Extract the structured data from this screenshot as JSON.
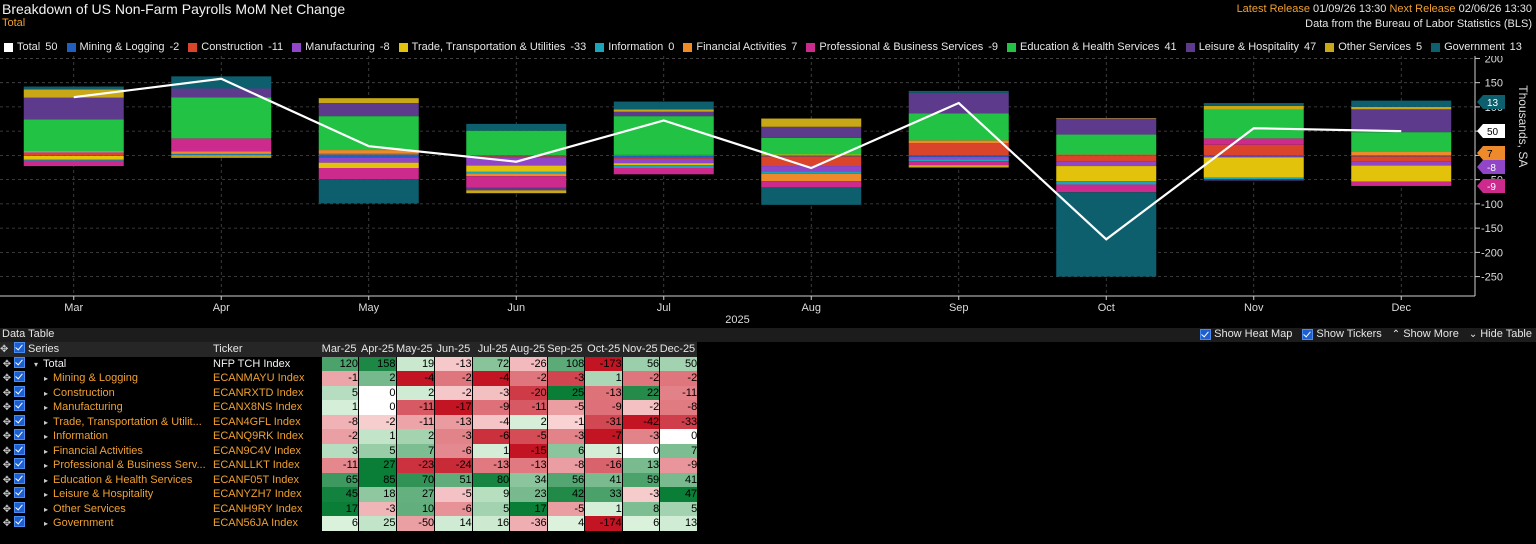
{
  "header": {
    "title": "Breakdown of US Non-Farm Payrolls MoM Net Change",
    "subtitle": "Total",
    "latest_release_label": "Latest Release",
    "latest_release_value": "01/09/26 13:30",
    "next_release_label": "Next Release",
    "next_release_value": "02/06/26 13:30",
    "source": "Data from the Bureau of Labor Statistics (BLS)"
  },
  "colors": {
    "Total": "#ffffff",
    "Mining & Logging": "#1f5fbf",
    "Construction": "#d9442a",
    "Manufacturing": "#9146c8",
    "Trade, Transportation & Utilities": "#e3c20c",
    "Information": "#1aa5b8",
    "Financial Activities": "#ec8a2c",
    "Professional & Business Services": "#cc2a8c",
    "Education & Health Services": "#22c244",
    "Leisure & Hospitality": "#5e3a8c",
    "Other Services": "#c8a816",
    "Government": "#0d5f6e"
  },
  "legend": [
    {
      "name": "Total",
      "value": "50"
    },
    {
      "name": "Mining & Logging",
      "value": "-2"
    },
    {
      "name": "Construction",
      "value": "-11"
    },
    {
      "name": "Manufacturing",
      "value": "-8"
    },
    {
      "name": "Trade, Transportation & Utilities",
      "value": "-33"
    },
    {
      "name": "Information",
      "value": "0"
    },
    {
      "name": "Financial Activities",
      "value": "7"
    },
    {
      "name": "Professional & Business Services",
      "value": "-9"
    },
    {
      "name": "Education & Health Services",
      "value": "41"
    },
    {
      "name": "Leisure & Hospitality",
      "value": "47"
    },
    {
      "name": "Other Services",
      "value": "5"
    },
    {
      "name": "Government",
      "value": "13"
    }
  ],
  "chart_data": {
    "type": "bar",
    "stacked": true,
    "categories": [
      "Mar",
      "Apr",
      "May",
      "Jun",
      "Jul",
      "Aug",
      "Sep",
      "Oct",
      "Nov",
      "Dec"
    ],
    "xlabel": "2025",
    "ylabel": "Thousands, SA",
    "ylim": [
      -290,
      205
    ],
    "yticks": [
      200,
      150,
      100,
      50,
      0,
      -50,
      -100,
      -150,
      -200,
      -250
    ],
    "y_axis_position": "right",
    "line_series": {
      "name": "Total",
      "values": [
        120,
        158,
        19,
        -13,
        72,
        -26,
        108,
        -173,
        56,
        50
      ]
    },
    "series": [
      {
        "name": "Mining & Logging",
        "values": [
          -1,
          2,
          -4,
          -2,
          -4,
          -2,
          -3,
          1,
          -2,
          -2
        ]
      },
      {
        "name": "Construction",
        "values": [
          5,
          0,
          2,
          -2,
          -3,
          -20,
          25,
          -13,
          22,
          -11
        ]
      },
      {
        "name": "Manufacturing",
        "values": [
          1,
          0,
          -11,
          -17,
          -9,
          -11,
          -5,
          -9,
          -2,
          -8
        ]
      },
      {
        "name": "Trade, Transportation & Utilities",
        "values": [
          -8,
          -2,
          -11,
          -13,
          -4,
          2,
          -1,
          -31,
          -42,
          -33
        ]
      },
      {
        "name": "Information",
        "values": [
          -2,
          1,
          2,
          -3,
          -6,
          -5,
          -3,
          -7,
          -3,
          0
        ]
      },
      {
        "name": "Financial Activities",
        "values": [
          3,
          5,
          7,
          -6,
          1,
          -15,
          6,
          1,
          0,
          7
        ]
      },
      {
        "name": "Professional & Business Services",
        "values": [
          -11,
          27,
          -23,
          -24,
          -13,
          -13,
          -8,
          -16,
          13,
          -9
        ]
      },
      {
        "name": "Education & Health Services",
        "values": [
          65,
          85,
          70,
          51,
          80,
          34,
          56,
          41,
          59,
          41
        ]
      },
      {
        "name": "Leisure & Hospitality",
        "values": [
          45,
          18,
          27,
          -5,
          9,
          23,
          42,
          33,
          -3,
          47
        ]
      },
      {
        "name": "Other Services",
        "values": [
          17,
          -3,
          10,
          -6,
          5,
          17,
          -5,
          1,
          8,
          5
        ]
      },
      {
        "name": "Government",
        "values": [
          6,
          25,
          -50,
          14,
          16,
          -36,
          4,
          -174,
          6,
          13
        ]
      }
    ],
    "end_labels": [
      {
        "text": "13",
        "value": 13,
        "color": "#0d5f6e",
        "row": 0
      },
      {
        "text": "50",
        "value": 50,
        "color": "#ffffff",
        "row": 1
      },
      {
        "text": "7",
        "value": 7,
        "color": "#ec8a2c",
        "row": 2
      },
      {
        "text": "-8",
        "value": -8,
        "color": "#9146c8",
        "row": 3
      },
      {
        "text": "-9",
        "value": -9,
        "color": "#cc2a8c",
        "row": 4
      }
    ]
  },
  "data_table": {
    "title": "Data Table",
    "controls": [
      {
        "label": "Show Heat Map",
        "kind": "checkbox"
      },
      {
        "label": "Show Tickers",
        "kind": "checkbox"
      },
      {
        "label": "Show More",
        "kind": "chevron-up"
      },
      {
        "label": "Hide Table",
        "kind": "chevron-down"
      }
    ],
    "headers": {
      "series": "Series",
      "ticker": "Ticker"
    },
    "months": [
      "Mar-25",
      "Apr-25",
      "May-25",
      "Jun-25",
      "Jul-25",
      "Aug-25",
      "Sep-25",
      "Oct-25",
      "Nov-25",
      "Dec-25"
    ],
    "rows": [
      {
        "name": "Total",
        "ticker": "NFP TCH Index",
        "values": [
          120,
          158,
          19,
          -13,
          72,
          -26,
          108,
          -173,
          56,
          50
        ]
      },
      {
        "name": "Mining & Logging",
        "ticker": "ECANMAYU Index",
        "values": [
          -1,
          2,
          -4,
          -2,
          -4,
          -2,
          -3,
          1,
          -2,
          -2
        ]
      },
      {
        "name": "Construction",
        "ticker": "ECANRXTD Index",
        "values": [
          5,
          0,
          2,
          -2,
          -3,
          -20,
          25,
          -13,
          22,
          -11
        ]
      },
      {
        "name": "Manufacturing",
        "ticker": "ECANX8NS Index",
        "values": [
          1,
          0,
          -11,
          -17,
          -9,
          -11,
          -5,
          -9,
          -2,
          -8
        ]
      },
      {
        "name": "Trade, Transportation & Utilit...",
        "ticker": "ECAN4GFL Index",
        "values": [
          -8,
          -2,
          -11,
          -13,
          -4,
          2,
          -1,
          -31,
          -42,
          -33
        ]
      },
      {
        "name": "Information",
        "ticker": "ECANQ9RK Index",
        "values": [
          -2,
          1,
          2,
          -3,
          -6,
          -5,
          -3,
          -7,
          -3,
          0
        ]
      },
      {
        "name": "Financial Activities",
        "ticker": "ECAN9C4V Index",
        "values": [
          3,
          5,
          7,
          -6,
          1,
          -15,
          6,
          1,
          0,
          7
        ]
      },
      {
        "name": "Professional & Business Serv...",
        "ticker": "ECANLLKT Index",
        "values": [
          -11,
          27,
          -23,
          -24,
          -13,
          -13,
          -8,
          -16,
          13,
          -9
        ]
      },
      {
        "name": "Education & Health Services",
        "ticker": "ECANF05T Index",
        "values": [
          65,
          85,
          70,
          51,
          80,
          34,
          56,
          41,
          59,
          41
        ]
      },
      {
        "name": "Leisure & Hospitality",
        "ticker": "ECANYZH7 Index",
        "values": [
          45,
          18,
          27,
          -5,
          9,
          23,
          42,
          33,
          -3,
          47
        ]
      },
      {
        "name": "Other Services",
        "ticker": "ECANH9RY Index",
        "values": [
          17,
          -3,
          10,
          -6,
          5,
          17,
          -5,
          1,
          8,
          5
        ]
      },
      {
        "name": "Government",
        "ticker": "ECAN56JA Index",
        "values": [
          6,
          25,
          -50,
          14,
          16,
          -36,
          4,
          -174,
          6,
          13
        ]
      }
    ]
  }
}
